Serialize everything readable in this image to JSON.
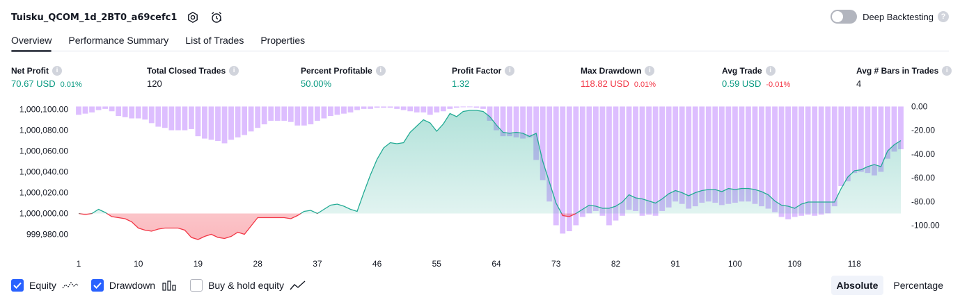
{
  "header": {
    "title": "Tuisku_QCOM_1d_2BT0_a69cefc1",
    "deep_backtesting_label": "Deep Backtesting",
    "deep_backtesting_enabled": false,
    "help_glyph": "?"
  },
  "tabs": [
    {
      "label": "Overview",
      "active": true
    },
    {
      "label": "Performance Summary",
      "active": false
    },
    {
      "label": "List of Trades",
      "active": false
    },
    {
      "label": "Properties",
      "active": false
    }
  ],
  "stats": {
    "info_glyph": "i",
    "net_profit": {
      "label": "Net Profit",
      "value": "70.67 USD",
      "pct": "0.01%"
    },
    "total_closed_trades": {
      "label": "Total Closed Trades",
      "value": "120"
    },
    "percent_profitable": {
      "label": "Percent Profitable",
      "value": "50.00%"
    },
    "profit_factor": {
      "label": "Profit Factor",
      "value": "1.32"
    },
    "max_drawdown": {
      "label": "Max Drawdown",
      "value": "118.82 USD",
      "pct": "0.01%"
    },
    "avg_trade": {
      "label": "Avg Trade",
      "value": "0.59 USD",
      "pct": "-0.01%"
    },
    "avg_bars": {
      "label": "Avg # Bars in Trades",
      "value": "4"
    }
  },
  "colors": {
    "profit": "#089981",
    "loss": "#f23645",
    "drawdown_bar": "#d1a8ff",
    "equity_line": "#22ab94",
    "checkbox": "#2962ff"
  },
  "chart_data": {
    "type": "area",
    "x_ticks": [
      "1",
      "10",
      "19",
      "28",
      "37",
      "46",
      "55",
      "64",
      "73",
      "82",
      "91",
      "100",
      "109",
      "118"
    ],
    "equity_axis": {
      "ticks": [
        "1,000,100.00",
        "1,000,080.00",
        "1,000,060.00",
        "1,000,040.00",
        "1,000,020.00",
        "1,000,000.00",
        "999,980.00"
      ],
      "range": [
        999975,
        1000105
      ],
      "baseline": 1000000
    },
    "drawdown_axis": {
      "ticks": [
        "0.00",
        "-20.00",
        "-40.00",
        "-60.00",
        "-80.00",
        "-100.00"
      ],
      "range": [
        -112,
        2
      ]
    },
    "series": [
      {
        "name": "Equity",
        "kind": "area",
        "values": [
          1000000,
          999999,
          1000000,
          1000004,
          1000001,
          999997,
          999996,
          999995,
          999992,
          999986,
          999984,
          999983,
          999985,
          999986,
          999986,
          999986,
          999984,
          999977,
          999975,
          999978,
          999980,
          999977,
          999976,
          999978,
          999982,
          999980,
          999988,
          999996,
          999996,
          999996,
          999996,
          999996,
          999995,
          999998,
          1000002,
          1000003,
          1000000,
          1000004,
          1000008,
          1000009,
          1000007,
          1000004,
          1000002,
          1000020,
          1000037,
          1000052,
          1000063,
          1000068,
          1000067,
          1000068,
          1000078,
          1000084,
          1000090,
          1000087,
          1000079,
          1000086,
          1000096,
          1000093,
          1000098,
          1000099,
          1000099,
          1000098,
          1000093,
          1000085,
          1000078,
          1000077,
          1000078,
          1000077,
          1000074,
          1000077,
          1000050,
          1000030,
          1000010,
          999998,
          999997,
          1000000,
          1000004,
          1000008,
          1000007,
          1000005,
          1000005,
          1000007,
          1000011,
          1000018,
          1000015,
          1000014,
          1000012,
          1000010,
          1000014,
          1000019,
          1000022,
          1000020,
          1000017,
          1000020,
          1000022,
          1000023,
          1000023,
          1000021,
          1000024,
          1000023,
          1000024,
          1000024,
          1000023,
          1000021,
          1000018,
          1000012,
          1000008,
          1000007,
          1000005,
          1000009,
          1000011,
          1000011,
          1000011,
          1000011,
          1000011,
          1000024,
          1000035,
          1000041,
          1000042,
          1000045,
          1000047,
          1000045,
          1000060,
          1000066,
          1000070
        ]
      },
      {
        "name": "Drawdown",
        "kind": "bar",
        "values": [
          -7,
          -6,
          -5,
          -3,
          -2,
          -4,
          -8,
          -9,
          -10,
          -10,
          -11,
          -14,
          -17,
          -18,
          -20,
          -20,
          -20,
          -19,
          -25,
          -27,
          -28,
          -29,
          -31,
          -28,
          -26,
          -24,
          -21,
          -18,
          -15,
          -12,
          -12,
          -12,
          -13,
          -16,
          -16,
          -15,
          -12,
          -10,
          -8,
          -7,
          -6,
          -5,
          -3,
          -2,
          -2,
          -1,
          -1,
          -1,
          -2,
          -3,
          -4,
          -5,
          -5,
          -7,
          -5,
          -4,
          -2,
          -1,
          0,
          0,
          -1,
          -2,
          -12,
          -20,
          -25,
          -25,
          -26,
          -27,
          -26,
          -45,
          -62,
          -80,
          -100,
          -107,
          -105,
          -100,
          -93,
          -90,
          -88,
          -92,
          -100,
          -96,
          -92,
          -87,
          -88,
          -92,
          -91,
          -92,
          -88,
          -85,
          -80,
          -82,
          -86,
          -84,
          -81,
          -80,
          -81,
          -83,
          -82,
          -81,
          -80,
          -80,
          -82,
          -84,
          -86,
          -89,
          -93,
          -95,
          -93,
          -92,
          -91,
          -92,
          -91,
          -90,
          -84,
          -67,
          -63,
          -56,
          -55,
          -56,
          -58,
          -55,
          -44,
          -38,
          -36
        ]
      }
    ]
  },
  "legend": [
    {
      "label": "Equity",
      "checked": true,
      "icon": "equity-wave-icon"
    },
    {
      "label": "Drawdown",
      "checked": true,
      "icon": "drawdown-bars-icon"
    },
    {
      "label": "Buy & hold equity",
      "checked": false,
      "icon": "buy-hold-line-icon"
    }
  ],
  "modes": [
    {
      "label": "Absolute",
      "active": true
    },
    {
      "label": "Percentage",
      "active": false
    }
  ]
}
